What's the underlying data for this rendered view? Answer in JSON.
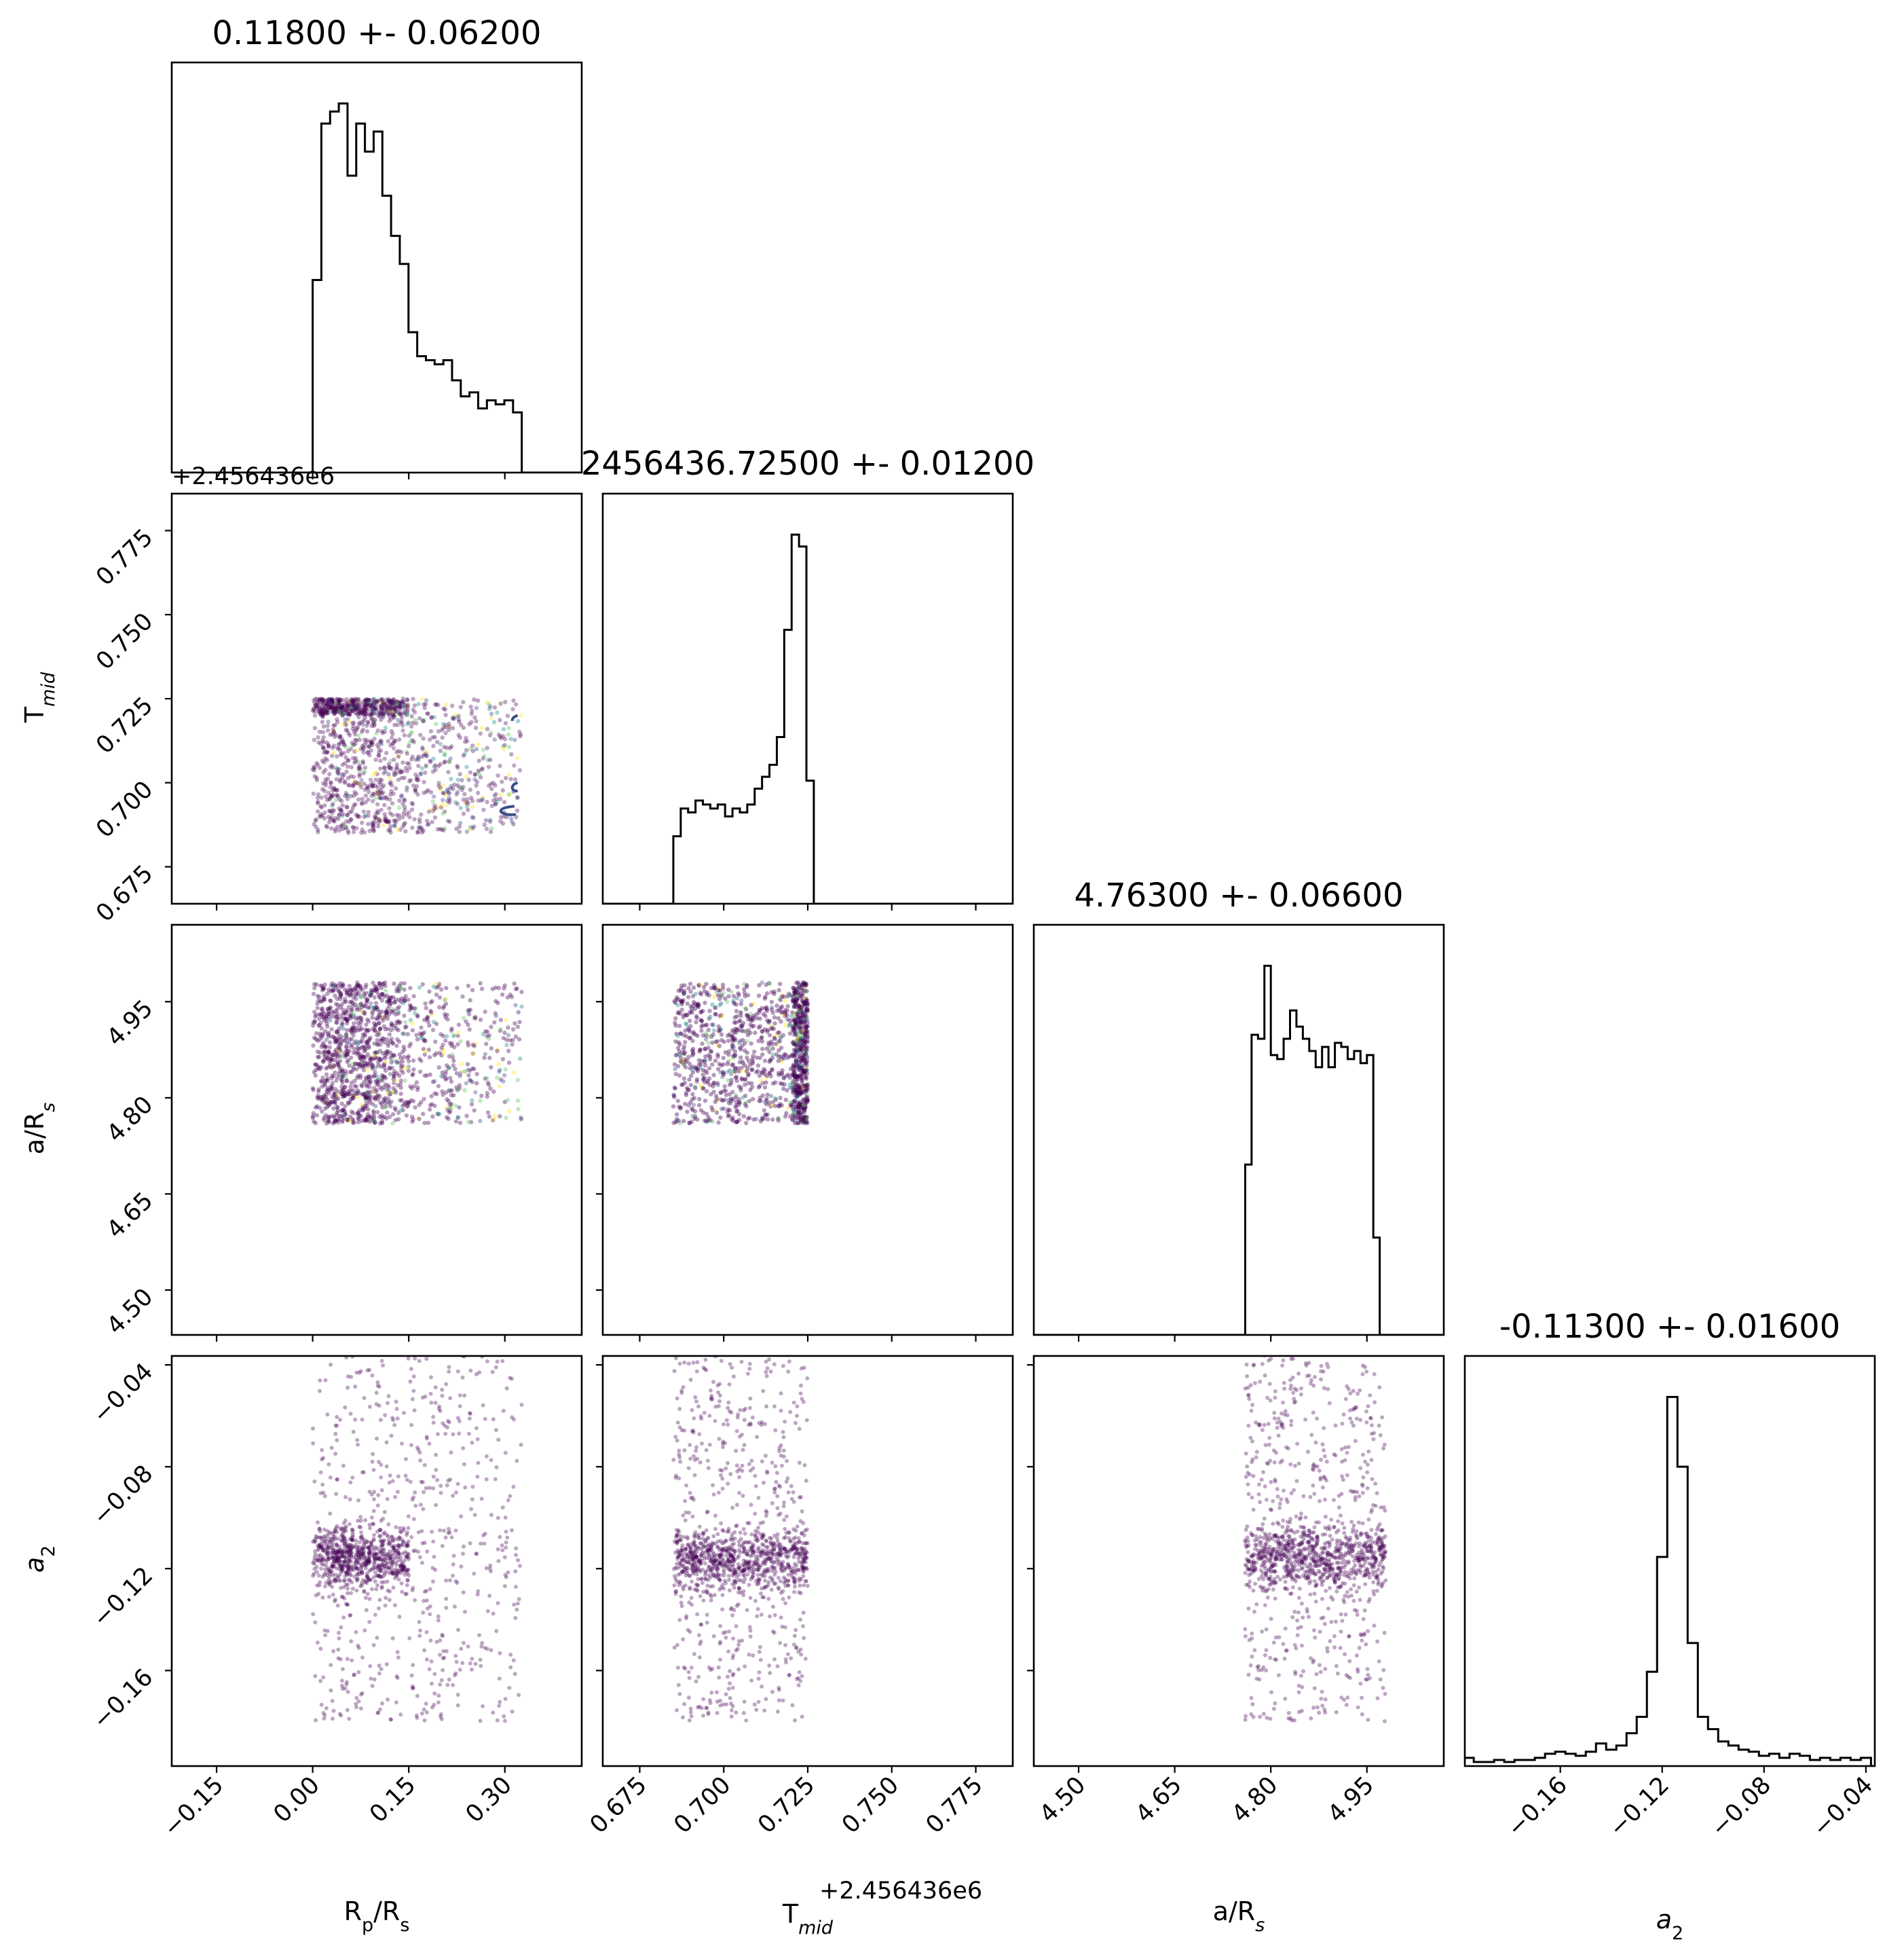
{
  "figure": {
    "colormap": [
      "#440154",
      "#3b528b",
      "#21918c",
      "#5ec962",
      "#fde725"
    ],
    "contour_color": "#3b4d8a"
  },
  "chart_data": [
    {
      "type": "histogram",
      "panel": "diag-0",
      "title": "0.11800 +- 0.06200",
      "xlim": [
        -0.22,
        0.42
      ],
      "x": [
        0.0,
        0.0136,
        0.0272,
        0.0408,
        0.0544,
        0.068,
        0.0816,
        0.0952,
        0.1088,
        0.1224,
        0.136,
        0.1496,
        0.1632,
        0.1768,
        0.1904,
        0.204,
        0.2176,
        0.2312,
        0.2448,
        0.2584,
        0.272,
        0.2856,
        0.2992,
        0.3128
      ],
      "values": [
        0.48,
        0.87,
        0.9,
        0.92,
        0.74,
        0.87,
        0.8,
        0.85,
        0.69,
        0.59,
        0.52,
        0.35,
        0.29,
        0.28,
        0.27,
        0.28,
        0.23,
        0.19,
        0.2,
        0.16,
        0.18,
        0.17,
        0.18,
        0.15
      ],
      "bin_width": 0.0136
    },
    {
      "type": "histogram",
      "panel": "diag-1",
      "title": "2456436.72500 +- 0.01200",
      "xlim": [
        0.664,
        0.786
      ],
      "tick_offset": "+2.456436e6",
      "x": [
        0.685,
        0.6872,
        0.6894,
        0.6916,
        0.6938,
        0.696,
        0.6982,
        0.7004,
        0.7026,
        0.7048,
        0.707,
        0.7092,
        0.7114,
        0.7136,
        0.7158,
        0.718,
        0.7202,
        0.7224,
        0.7246
      ],
      "values": [
        0.17,
        0.24,
        0.23,
        0.26,
        0.25,
        0.24,
        0.25,
        0.22,
        0.24,
        0.23,
        0.25,
        0.29,
        0.32,
        0.35,
        0.42,
        0.69,
        0.93,
        0.9,
        0.31
      ],
      "bin_width": 0.0022
    },
    {
      "type": "histogram",
      "panel": "diag-2",
      "title": "4.76300 +- 0.06600",
      "xlim": [
        4.43,
        5.07
      ],
      "x": [
        4.76,
        4.77,
        4.78,
        4.79,
        4.8,
        4.81,
        4.82,
        4.83,
        4.84,
        4.85,
        4.86,
        4.87,
        4.88,
        4.89,
        4.9,
        4.91,
        4.92,
        4.93,
        4.94,
        4.95,
        4.96,
        4.97
      ],
      "values": [
        0.42,
        0.74,
        0.73,
        0.91,
        0.69,
        0.68,
        0.73,
        0.8,
        0.76,
        0.73,
        0.7,
        0.66,
        0.71,
        0.66,
        0.72,
        0.71,
        0.68,
        0.7,
        0.67,
        0.69,
        0.24,
        0.0
      ],
      "bin_width": 0.01
    },
    {
      "type": "histogram",
      "panel": "diag-3",
      "title": "-0.11300 +- 0.01600",
      "xlim": [
        -0.1975,
        -0.0365
      ],
      "xlabel": "a_2",
      "x": [
        -0.198,
        -0.194,
        -0.19,
        -0.186,
        -0.182,
        -0.178,
        -0.174,
        -0.17,
        -0.166,
        -0.162,
        -0.158,
        -0.154,
        -0.15,
        -0.146,
        -0.142,
        -0.138,
        -0.134,
        -0.13,
        -0.126,
        -0.122,
        -0.118,
        -0.114,
        -0.11,
        -0.106,
        -0.102,
        -0.098,
        -0.094,
        -0.09,
        -0.086,
        -0.082,
        -0.078,
        -0.074,
        -0.07,
        -0.066,
        -0.062,
        -0.058,
        -0.054,
        -0.05,
        -0.046,
        -0.042
      ],
      "values": [
        0.02,
        0.01,
        0.01,
        0.015,
        0.01,
        0.015,
        0.015,
        0.02,
        0.03,
        0.035,
        0.03,
        0.025,
        0.035,
        0.055,
        0.04,
        0.05,
        0.08,
        0.12,
        0.23,
        0.51,
        0.9,
        0.73,
        0.3,
        0.12,
        0.09,
        0.06,
        0.05,
        0.04,
        0.035,
        0.025,
        0.03,
        0.02,
        0.03,
        0.025,
        0.015,
        0.02,
        0.015,
        0.02,
        0.015,
        0.02
      ],
      "bin_width": 0.004
    },
    {
      "type": "scatter",
      "panel": "pair-1-0",
      "x_range": [
        0.0,
        0.32
      ],
      "y_range": [
        0.685,
        0.725
      ],
      "note_dense": "dense band near T_mid 0.72 for R_p/R_s below 0.15"
    },
    {
      "type": "scatter",
      "panel": "pair-2-0",
      "x_range": [
        0.0,
        0.32
      ],
      "y_range": [
        4.76,
        4.98
      ]
    },
    {
      "type": "scatter",
      "panel": "pair-2-1",
      "x_range": [
        0.685,
        0.725
      ],
      "y_range": [
        4.76,
        4.98
      ]
    },
    {
      "type": "scatter",
      "panel": "pair-3-0",
      "x_range": [
        0.0,
        0.32
      ],
      "y_range": [
        -0.18,
        -0.03
      ],
      "core": [
        -0.116,
        0.006
      ]
    },
    {
      "type": "scatter",
      "panel": "pair-3-1",
      "x_range": [
        0.685,
        0.725
      ],
      "y_range": [
        -0.18,
        -0.03
      ],
      "core": [
        -0.116,
        0.006
      ]
    },
    {
      "type": "scatter",
      "panel": "pair-3-2",
      "x_range": [
        4.76,
        4.98
      ],
      "y_range": [
        -0.18,
        -0.03
      ],
      "core": [
        -0.116,
        0.006
      ]
    }
  ],
  "axes": {
    "col0": {
      "ticks": [
        "−0.15",
        "0.00",
        "0.15",
        "0.30"
      ],
      "values": [
        -0.15,
        0.0,
        0.15,
        0.3
      ],
      "label_main": "R",
      "label_sub1": "p",
      "label_mid": "/R",
      "label_sub2": "s"
    },
    "col1": {
      "ticks": [
        "0.675",
        "0.700",
        "0.725",
        "0.750",
        "0.775"
      ],
      "values": [
        0.675,
        0.7,
        0.725,
        0.75,
        0.775
      ],
      "label_main": "T",
      "label_sub1": "mid",
      "offset": "+2.456436e6"
    },
    "col2": {
      "ticks": [
        "4.50",
        "4.65",
        "4.80",
        "4.95"
      ],
      "values": [
        4.5,
        4.65,
        4.8,
        4.95
      ],
      "label_main": "a/R",
      "label_sub1": "s"
    },
    "col3": {
      "ticks": [
        "−0.16",
        "−0.12",
        "−0.08",
        "−0.04"
      ],
      "values": [
        -0.16,
        -0.12,
        -0.08,
        -0.04
      ],
      "label_main": "a",
      "label_sub1": "2"
    },
    "row1": {
      "ticks": [
        "0.675",
        "0.700",
        "0.725",
        "0.750",
        "0.775"
      ],
      "values": [
        0.675,
        0.7,
        0.725,
        0.75,
        0.775
      ],
      "label_main": "T",
      "label_sub1": "mid",
      "offset": "+2.456436e6",
      "ylim": [
        0.664,
        0.786
      ]
    },
    "row2": {
      "ticks": [
        "4.50",
        "4.65",
        "4.80",
        "4.95"
      ],
      "values": [
        4.5,
        4.65,
        4.8,
        4.95
      ],
      "label_main": "a/R",
      "label_sub1": "s",
      "ylim": [
        4.43,
        5.07
      ]
    },
    "row3": {
      "ticks": [
        "−0.04",
        "−0.08",
        "−0.12",
        "−0.16"
      ],
      "values": [
        -0.04,
        -0.08,
        -0.12,
        -0.16
      ],
      "label_main": "a",
      "label_sub1": "2",
      "ylim": [
        -0.1975,
        -0.0365
      ]
    }
  }
}
